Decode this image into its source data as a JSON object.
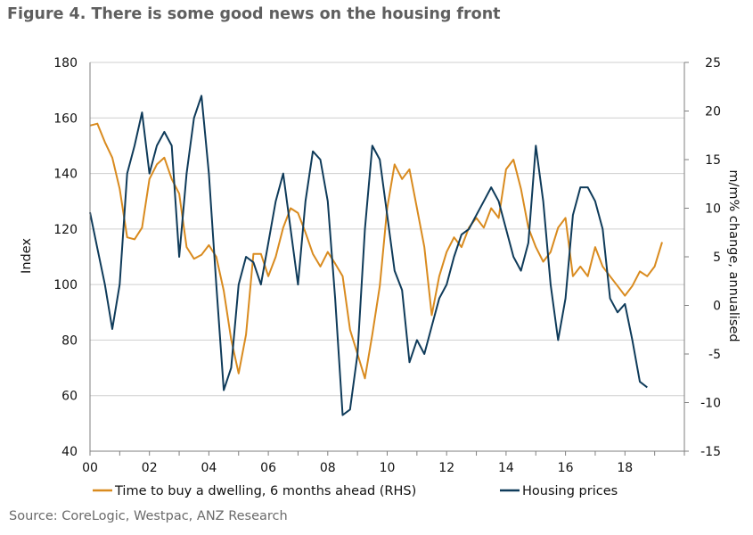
{
  "title": "Figure 4. There is some good news on the housing front",
  "source": "Source: CoreLogic, Westpac, ANZ Research",
  "colors": {
    "rhs_series": "#D98B1F",
    "lhs_series": "#0F3B5A",
    "grid": "#cfcfcf",
    "axis": "#7f7f7f"
  },
  "chart_data": {
    "type": "line",
    "title": "Figure 4. There is some good news on the housing front",
    "xlabel": "",
    "ylabel": "Index",
    "y2label": "m/m% change, annualised",
    "xlim": [
      2000,
      2020
    ],
    "ylim": [
      40,
      180
    ],
    "y2lim": [
      -15,
      25
    ],
    "x_ticks": [
      2000,
      2002,
      2004,
      2006,
      2008,
      2010,
      2012,
      2014,
      2016,
      2018
    ],
    "x_tick_labels": [
      "00",
      "02",
      "04",
      "06",
      "08",
      "10",
      "12",
      "14",
      "16",
      "18"
    ],
    "y_ticks": [
      40,
      60,
      80,
      100,
      120,
      140,
      160,
      180
    ],
    "y2_ticks": [
      -15,
      -10,
      -5,
      0,
      5,
      10,
      15,
      20,
      25
    ],
    "grid": true,
    "legend": "bottom",
    "series": [
      {
        "name": "Time to buy a dwelling, 6 months ahead (RHS)",
        "axis": "right",
        "points": [
          [
            2000.0,
            18.5
          ],
          [
            2000.25,
            18.7
          ],
          [
            2000.5,
            16.8
          ],
          [
            2000.75,
            15.2
          ],
          [
            2001.0,
            12.0
          ],
          [
            2001.25,
            7.0
          ],
          [
            2001.5,
            6.8
          ],
          [
            2001.75,
            8.0
          ],
          [
            2002.0,
            13.0
          ],
          [
            2002.25,
            14.5
          ],
          [
            2002.5,
            15.2
          ],
          [
            2002.75,
            13.0
          ],
          [
            2003.0,
            11.5
          ],
          [
            2003.25,
            6.0
          ],
          [
            2003.5,
            4.8
          ],
          [
            2003.75,
            5.2
          ],
          [
            2004.0,
            6.2
          ],
          [
            2004.25,
            5.0
          ],
          [
            2004.5,
            1.5
          ],
          [
            2004.75,
            -3.5
          ],
          [
            2005.0,
            -7.0
          ],
          [
            2005.25,
            -3.0
          ],
          [
            2005.5,
            5.3
          ],
          [
            2005.75,
            5.3
          ],
          [
            2006.0,
            3.0
          ],
          [
            2006.25,
            5.0
          ],
          [
            2006.5,
            8.0
          ],
          [
            2006.75,
            10.0
          ],
          [
            2007.0,
            9.5
          ],
          [
            2007.25,
            7.5
          ],
          [
            2007.5,
            5.3
          ],
          [
            2007.75,
            4.0
          ],
          [
            2008.0,
            5.5
          ],
          [
            2008.25,
            4.3
          ],
          [
            2008.5,
            3.0
          ],
          [
            2008.75,
            -2.5
          ],
          [
            2009.0,
            -5.0
          ],
          [
            2009.25,
            -7.5
          ],
          [
            2009.5,
            -3.0
          ],
          [
            2009.75,
            2.0
          ],
          [
            2010.0,
            10.0
          ],
          [
            2010.25,
            14.5
          ],
          [
            2010.5,
            13.0
          ],
          [
            2010.75,
            14.0
          ],
          [
            2011.0,
            10.0
          ],
          [
            2011.25,
            6.0
          ],
          [
            2011.5,
            -1.0
          ],
          [
            2011.75,
            3.0
          ],
          [
            2012.0,
            5.5
          ],
          [
            2012.25,
            7.0
          ],
          [
            2012.5,
            6.0
          ],
          [
            2012.75,
            8.0
          ],
          [
            2013.0,
            9.0
          ],
          [
            2013.25,
            8.0
          ],
          [
            2013.5,
            10.0
          ],
          [
            2013.75,
            9.0
          ],
          [
            2014.0,
            14.0
          ],
          [
            2014.25,
            15.0
          ],
          [
            2014.5,
            12.0
          ],
          [
            2014.75,
            8.0
          ],
          [
            2015.0,
            6.0
          ],
          [
            2015.25,
            4.5
          ],
          [
            2015.5,
            5.5
          ],
          [
            2015.75,
            8.0
          ],
          [
            2016.0,
            9.0
          ],
          [
            2016.25,
            3.0
          ],
          [
            2016.5,
            4.0
          ],
          [
            2016.75,
            3.0
          ],
          [
            2017.0,
            6.0
          ],
          [
            2017.25,
            4.0
          ],
          [
            2017.5,
            3.0
          ],
          [
            2017.75,
            2.0
          ],
          [
            2018.0,
            1.0
          ],
          [
            2018.25,
            2.0
          ],
          [
            2018.5,
            3.5
          ],
          [
            2018.75,
            3.0
          ],
          [
            2019.0,
            4.0
          ],
          [
            2019.25,
            6.5
          ]
        ]
      },
      {
        "name": "Housing prices",
        "axis": "left",
        "points": [
          [
            2000.0,
            126
          ],
          [
            2000.25,
            113
          ],
          [
            2000.5,
            100
          ],
          [
            2000.75,
            84
          ],
          [
            2001.0,
            100
          ],
          [
            2001.25,
            140
          ],
          [
            2001.5,
            150
          ],
          [
            2001.75,
            162
          ],
          [
            2002.0,
            140
          ],
          [
            2002.25,
            150
          ],
          [
            2002.5,
            155
          ],
          [
            2002.75,
            150
          ],
          [
            2003.0,
            110
          ],
          [
            2003.25,
            140
          ],
          [
            2003.5,
            160
          ],
          [
            2003.75,
            168
          ],
          [
            2004.0,
            140
          ],
          [
            2004.25,
            100
          ],
          [
            2004.5,
            62
          ],
          [
            2004.75,
            70
          ],
          [
            2005.0,
            100
          ],
          [
            2005.25,
            110
          ],
          [
            2005.5,
            108
          ],
          [
            2005.75,
            100
          ],
          [
            2006.0,
            115
          ],
          [
            2006.25,
            130
          ],
          [
            2006.5,
            140
          ],
          [
            2006.75,
            120
          ],
          [
            2007.0,
            100
          ],
          [
            2007.25,
            130
          ],
          [
            2007.5,
            148
          ],
          [
            2007.75,
            145
          ],
          [
            2008.0,
            130
          ],
          [
            2008.25,
            95
          ],
          [
            2008.5,
            53
          ],
          [
            2008.75,
            55
          ],
          [
            2009.0,
            75
          ],
          [
            2009.25,
            120
          ],
          [
            2009.5,
            150
          ],
          [
            2009.75,
            145
          ],
          [
            2010.0,
            125
          ],
          [
            2010.25,
            105
          ],
          [
            2010.5,
            98
          ],
          [
            2010.75,
            72
          ],
          [
            2011.0,
            80
          ],
          [
            2011.25,
            75
          ],
          [
            2011.5,
            85
          ],
          [
            2011.75,
            95
          ],
          [
            2012.0,
            100
          ],
          [
            2012.25,
            110
          ],
          [
            2012.5,
            118
          ],
          [
            2012.75,
            120
          ],
          [
            2013.0,
            125
          ],
          [
            2013.25,
            130
          ],
          [
            2013.5,
            135
          ],
          [
            2013.75,
            130
          ],
          [
            2014.0,
            120
          ],
          [
            2014.25,
            110
          ],
          [
            2014.5,
            105
          ],
          [
            2014.75,
            115
          ],
          [
            2015.0,
            150
          ],
          [
            2015.25,
            130
          ],
          [
            2015.5,
            100
          ],
          [
            2015.75,
            80
          ],
          [
            2016.0,
            95
          ],
          [
            2016.25,
            125
          ],
          [
            2016.5,
            135
          ],
          [
            2016.75,
            135
          ],
          [
            2017.0,
            130
          ],
          [
            2017.25,
            120
          ],
          [
            2017.5,
            95
          ],
          [
            2017.75,
            90
          ],
          [
            2018.0,
            93
          ],
          [
            2018.25,
            80
          ],
          [
            2018.5,
            65
          ],
          [
            2018.75,
            63
          ]
        ]
      }
    ]
  }
}
